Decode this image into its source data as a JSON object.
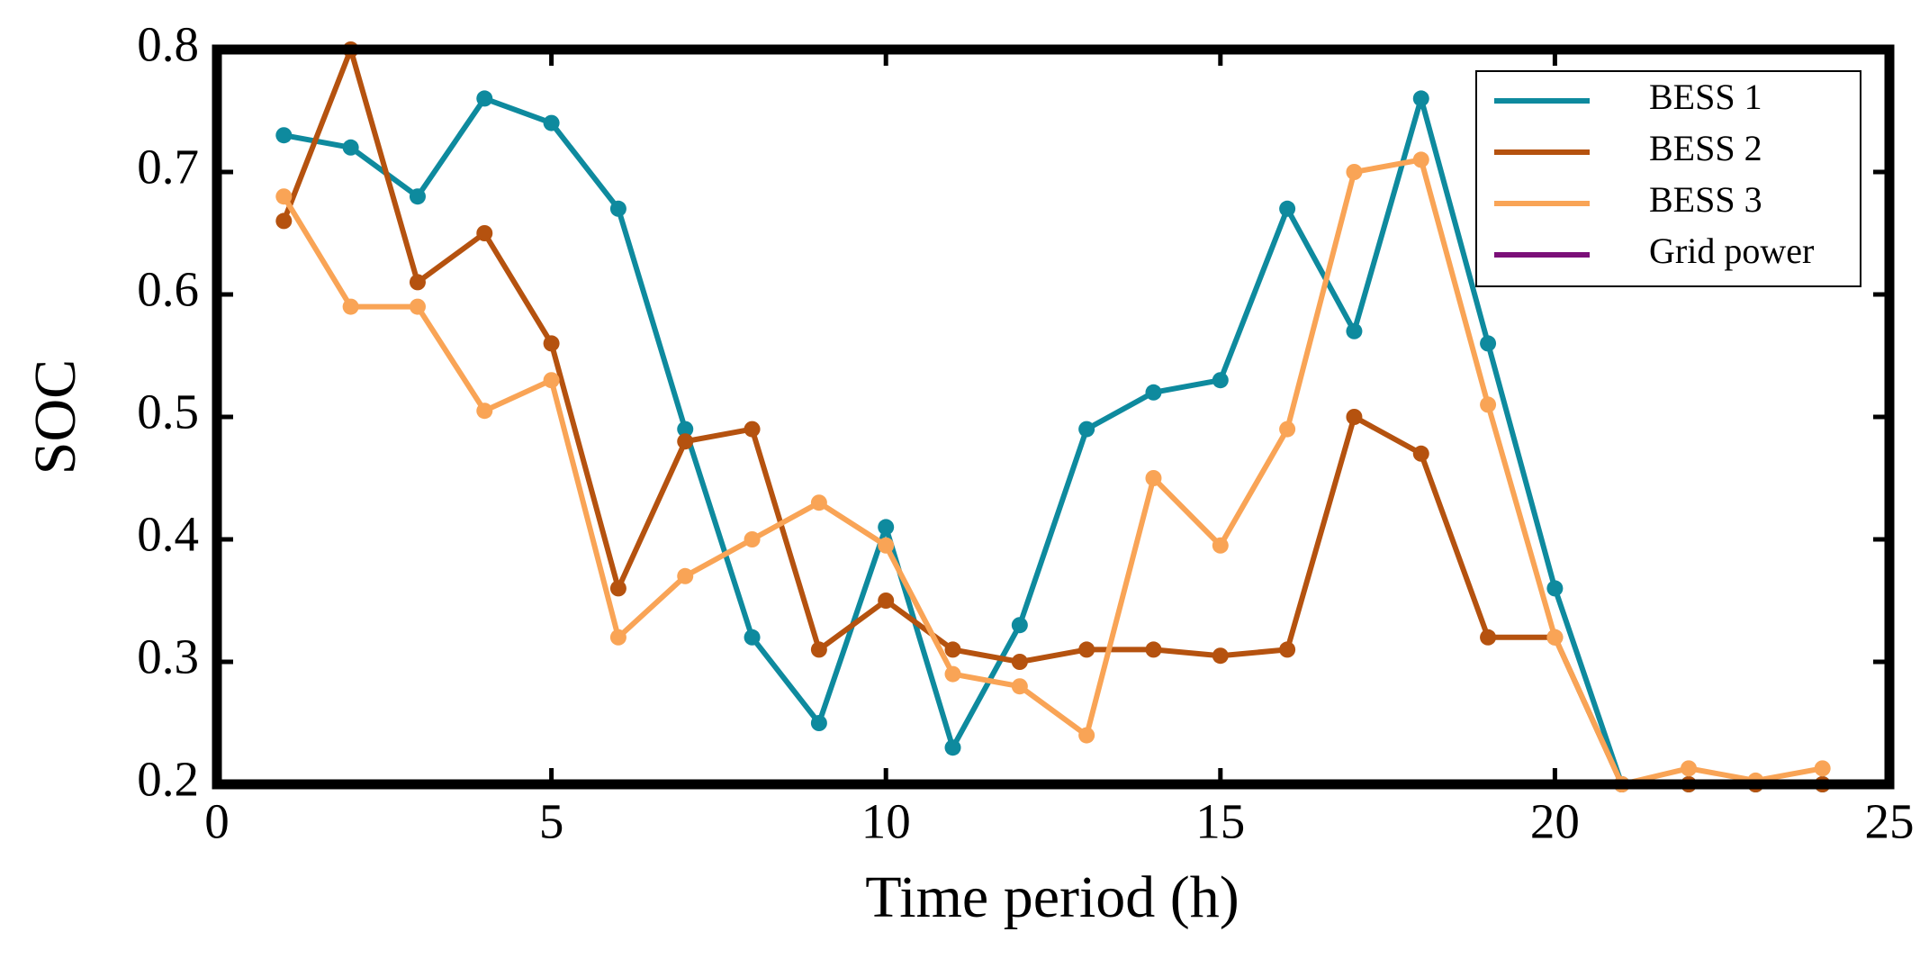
{
  "chart_data": {
    "type": "line",
    "xlabel": "Time period (h)",
    "ylabel": "SOC",
    "x": [
      1,
      2,
      3,
      4,
      5,
      6,
      7,
      8,
      9,
      10,
      11,
      12,
      13,
      14,
      15,
      16,
      17,
      18,
      19,
      20,
      21,
      22,
      23,
      24
    ],
    "series": [
      {
        "name": "BESS 1",
        "color": "#0e8a9e",
        "values": [
          0.73,
          0.72,
          0.68,
          0.76,
          0.74,
          0.67,
          0.49,
          0.32,
          0.25,
          0.41,
          0.23,
          0.33,
          0.49,
          0.52,
          0.53,
          0.67,
          0.57,
          0.76,
          0.56,
          0.36,
          0.2,
          0.2,
          0.2,
          0.2
        ]
      },
      {
        "name": "BESS 2",
        "color": "#b5520f",
        "values": [
          0.66,
          0.8,
          0.61,
          0.65,
          0.56,
          0.36,
          0.48,
          0.49,
          0.31,
          0.35,
          0.31,
          0.3,
          0.31,
          0.31,
          0.305,
          0.31,
          0.5,
          0.47,
          0.32,
          0.32,
          0.2,
          0.2,
          0.2,
          0.2
        ]
      },
      {
        "name": "BESS 3",
        "color": "#f9a456",
        "values": [
          0.68,
          0.59,
          0.59,
          0.505,
          0.53,
          0.32,
          0.37,
          0.4,
          0.43,
          0.395,
          0.29,
          0.28,
          0.24,
          0.45,
          0.395,
          0.49,
          0.7,
          0.71,
          0.51,
          0.32,
          0.2,
          0.213,
          0.203,
          0.213
        ]
      },
      {
        "name": "Grid power",
        "color": "#7b0f78",
        "values": [
          null,
          null,
          null,
          null,
          null,
          null,
          null,
          null,
          null,
          null,
          null,
          null,
          null,
          null,
          null,
          null,
          null,
          null,
          null,
          null,
          null,
          null,
          null,
          null
        ]
      }
    ],
    "xlim": [
      0,
      25
    ],
    "xticks": [
      0,
      5,
      10,
      15,
      20,
      25
    ],
    "ylim": [
      0.2,
      0.8
    ],
    "yticks": [
      0.2,
      0.3,
      0.4,
      0.5,
      0.6,
      0.7,
      0.8
    ],
    "legend": "upper right"
  }
}
